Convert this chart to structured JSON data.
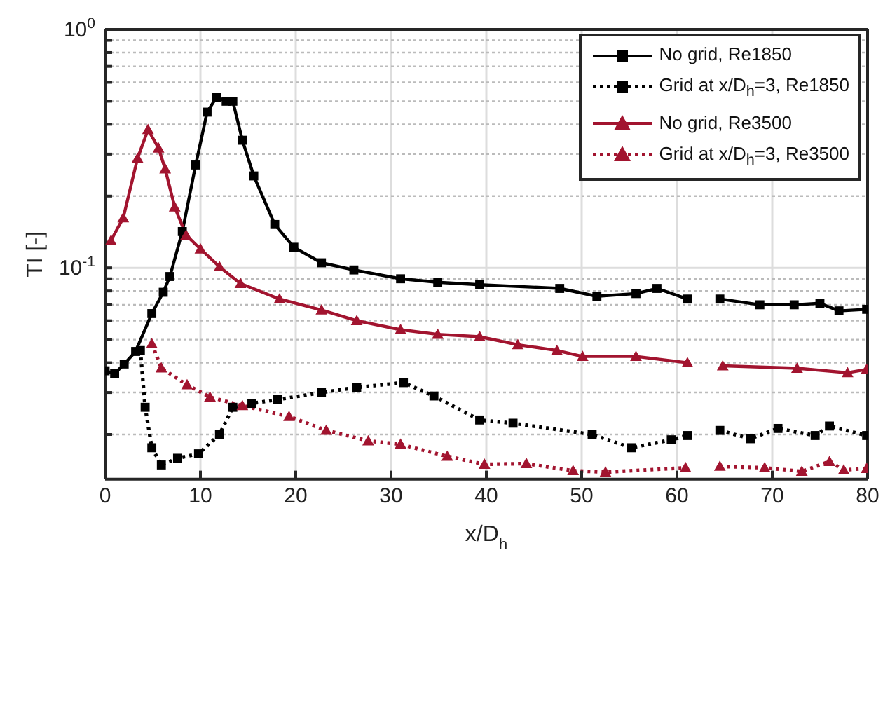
{
  "chart_data": {
    "type": "line",
    "xlabel": "x/D$_{h}$",
    "ylabel": "TI [-]",
    "log": "y",
    "grid": true,
    "legend": "top right",
    "xlim": [
      0,
      80
    ],
    "xticks": [
      0,
      10,
      20,
      30,
      40,
      50,
      60,
      70,
      80
    ],
    "ylim": [
      0.013,
      1
    ],
    "yticks": [
      {
        "value": 0.02,
        "label": null
      },
      {
        "value": 0.03,
        "label": null
      },
      {
        "value": 0.04,
        "label": null
      },
      {
        "value": 0.05,
        "label": null
      },
      {
        "value": 0.06,
        "label": null
      },
      {
        "value": 0.07,
        "label": null
      },
      {
        "value": 0.08,
        "label": null
      },
      {
        "value": 0.09,
        "label": null
      },
      {
        "value": 0.1,
        "label": "10$^{-1}$"
      },
      {
        "value": 0.2,
        "label": null
      },
      {
        "value": 0.3,
        "label": null
      },
      {
        "value": 0.4,
        "label": null
      },
      {
        "value": 0.5,
        "label": null
      },
      {
        "value": 0.6,
        "label": null
      },
      {
        "value": 0.7,
        "label": null
      },
      {
        "value": 0.8,
        "label": null
      },
      {
        "value": 0.9,
        "label": null
      },
      {
        "value": 1,
        "label": "10$^{0}$"
      }
    ],
    "series": [
      {
        "name": "No grid, Re1850",
        "color": "#000000",
        "line_style": "solid",
        "marker": "square",
        "x": [
          0,
          1,
          2,
          3.2,
          4.9,
          6.1,
          6.8,
          8.1,
          9.5,
          10.7,
          11.7,
          12.7,
          13.4,
          14.4,
          15.6,
          17.8,
          19.8,
          22.7,
          26.1,
          31,
          34.9,
          39.3,
          47.7,
          51.6,
          55.7,
          57.9,
          61.1,
          62.8,
          64.5,
          68.7,
          72.3,
          75,
          77,
          79.9
        ],
        "values": [
          0.037,
          0.036,
          0.0395,
          0.0446,
          0.0643,
          0.079,
          0.092,
          0.142,
          0.27,
          0.45,
          0.52,
          0.5,
          0.5,
          0.343,
          0.243,
          0.152,
          0.122,
          0.105,
          0.098,
          0.09,
          0.087,
          0.085,
          0.082,
          0.076,
          0.078,
          0.082,
          0.074,
          null,
          0.074,
          0.07,
          0.07,
          0.071,
          0.066,
          0.067
        ]
      },
      {
        "name": "Grid at x/D$_{h}$=3, Re1850",
        "color": "#000000",
        "line_style": "dotted",
        "marker": "square",
        "x": [
          3.7,
          4.2,
          4.9,
          5.9,
          7.6,
          9.8,
          12,
          13.4,
          15.4,
          18.1,
          22.7,
          26.4,
          31.3,
          34.5,
          39.3,
          42.8,
          51.1,
          55.2,
          59.4,
          61.1,
          62.8,
          64.5,
          67.7,
          70.6,
          74.5,
          76,
          79.9
        ],
        "values": [
          0.045,
          0.026,
          0.0176,
          0.0149,
          0.0159,
          0.0166,
          0.02,
          0.026,
          0.027,
          0.028,
          0.03,
          0.0315,
          0.033,
          0.029,
          0.023,
          0.0223,
          0.02,
          0.0176,
          0.019,
          0.0198,
          null,
          0.0208,
          0.0192,
          0.0212,
          0.0198,
          0.0217,
          0.0198
        ]
      },
      {
        "name": "No grid, Re3500",
        "color": "#a2142f",
        "line_style": "solid",
        "marker": "triangle",
        "x": [
          0.6,
          1.9,
          3.4,
          4.5,
          5.6,
          6.3,
          7.3,
          8.5,
          10,
          12,
          14.2,
          18.3,
          22.7,
          26.4,
          31,
          34.9,
          39.3,
          43.3,
          47.4,
          50.1,
          55.7,
          61.1,
          62.8,
          64.8,
          72.6,
          77.9,
          79.9
        ],
        "values": [
          0.13,
          0.162,
          0.288,
          0.38,
          0.318,
          0.26,
          0.18,
          0.137,
          0.12,
          0.101,
          0.086,
          0.074,
          0.0665,
          0.06,
          0.055,
          0.0526,
          0.0514,
          0.0476,
          0.045,
          0.0425,
          0.0425,
          0.04,
          null,
          0.0388,
          0.0379,
          0.0363,
          0.0375
        ]
      },
      {
        "name": "Grid at x/D$_{h}$=3, Re3500",
        "color": "#a2142f",
        "line_style": "dotted",
        "marker": "triangle",
        "x": [
          4.9,
          5.9,
          8.6,
          11,
          14.4,
          19.3,
          23.2,
          27.6,
          31,
          35.9,
          39.8,
          44.2,
          49.1,
          52.5,
          60.9,
          62.8,
          64.5,
          69.2,
          73.1,
          76,
          77.5,
          79.9
        ],
        "values": [
          0.048,
          0.038,
          0.0323,
          0.0287,
          0.0264,
          0.0238,
          0.0208,
          0.0188,
          0.0182,
          0.0162,
          0.015,
          0.0151,
          0.0141,
          0.0139,
          0.0145,
          null,
          0.0147,
          0.0145,
          0.014,
          0.0154,
          0.0142,
          0.0144
        ]
      }
    ]
  }
}
